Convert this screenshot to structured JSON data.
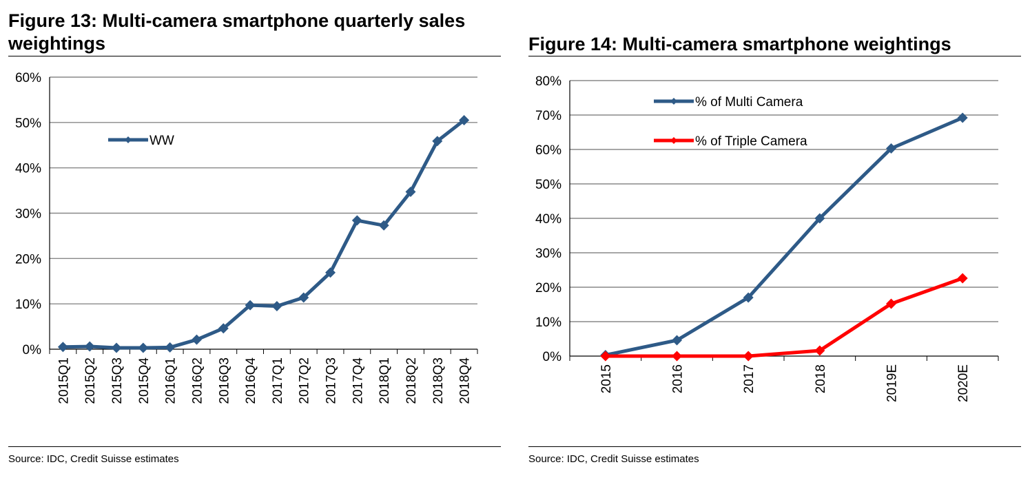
{
  "figures": [
    {
      "title": "Figure 13: Multi-camera smartphone quarterly sales weightings",
      "source": "Source: IDC, Credit Suisse estimates"
    },
    {
      "title": "Figure 14: Multi-camera smartphone weightings",
      "source": "Source: IDC, Credit Suisse estimates"
    }
  ],
  "chart_data": [
    {
      "type": "line",
      "title": "Figure 13: Multi-camera smartphone quarterly sales weightings",
      "xlabel": "",
      "ylabel": "",
      "categories": [
        "2015Q1",
        "2015Q2",
        "2015Q3",
        "2015Q4",
        "2016Q1",
        "2016Q2",
        "2016Q3",
        "2016Q4",
        "2017Q1",
        "2017Q2",
        "2017Q3",
        "2017Q4",
        "2018Q1",
        "2018Q2",
        "2018Q3",
        "2018Q4"
      ],
      "ylim": [
        0,
        0.6
      ],
      "yticks": [
        0,
        0.1,
        0.2,
        0.3,
        0.4,
        0.5,
        0.6
      ],
      "ytick_labels": [
        "0%",
        "10%",
        "20%",
        "30%",
        "40%",
        "50%",
        "60%"
      ],
      "grid": true,
      "legend": "upper-left inside plot",
      "series": [
        {
          "name": "WW",
          "color": "#2e5a87",
          "values": [
            0.005,
            0.006,
            0.003,
            0.003,
            0.004,
            0.021,
            0.046,
            0.097,
            0.095,
            0.114,
            0.169,
            0.284,
            0.273,
            0.347,
            0.459,
            0.505
          ]
        }
      ]
    },
    {
      "type": "line",
      "title": "Figure 14: Multi-camera smartphone weightings",
      "xlabel": "",
      "ylabel": "",
      "categories": [
        "2015",
        "2016",
        "2017",
        "2018",
        "2019E",
        "2020E"
      ],
      "ylim": [
        0,
        0.8
      ],
      "yticks": [
        0,
        0.1,
        0.2,
        0.3,
        0.4,
        0.5,
        0.6,
        0.7,
        0.8
      ],
      "ytick_labels": [
        "0%",
        "10%",
        "20%",
        "30%",
        "40%",
        "50%",
        "60%",
        "70%",
        "80%"
      ],
      "grid": true,
      "legend": "upper-left inside plot",
      "series": [
        {
          "name": "% of Multi Camera",
          "color": "#2e5a87",
          "values": [
            0.003,
            0.046,
            0.17,
            0.4,
            0.603,
            0.692
          ]
        },
        {
          "name": "% of Triple Camera",
          "color": "#ff0000",
          "values": [
            0.0,
            0.0,
            0.0,
            0.016,
            0.152,
            0.226
          ]
        }
      ]
    }
  ]
}
